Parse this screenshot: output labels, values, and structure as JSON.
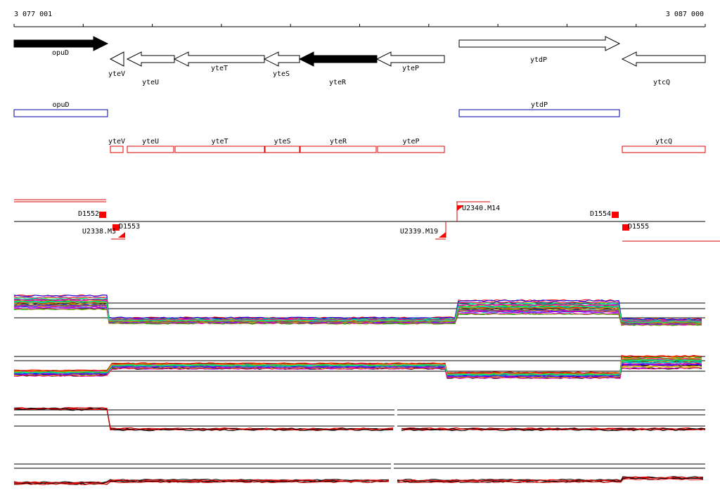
{
  "ruler": {
    "start_label": "3 077 001",
    "end_label": "3 087 000"
  },
  "gene_arrows": [
    "opuD",
    "yteV",
    "yteU",
    "yteT",
    "yteS",
    "yteR",
    "yteP",
    "ytdP",
    "ytcQ"
  ],
  "blue_features": [
    "opuD",
    "ytdP"
  ],
  "red_features": [
    "yteV",
    "yteU",
    "yteT",
    "yteS",
    "yteR",
    "yteP",
    "ytcQ"
  ],
  "markers": [
    "D1552",
    "U2338.M3",
    "D1553",
    "U2339.M19",
    "U2340.M14",
    "D1554",
    "D1555"
  ]
}
